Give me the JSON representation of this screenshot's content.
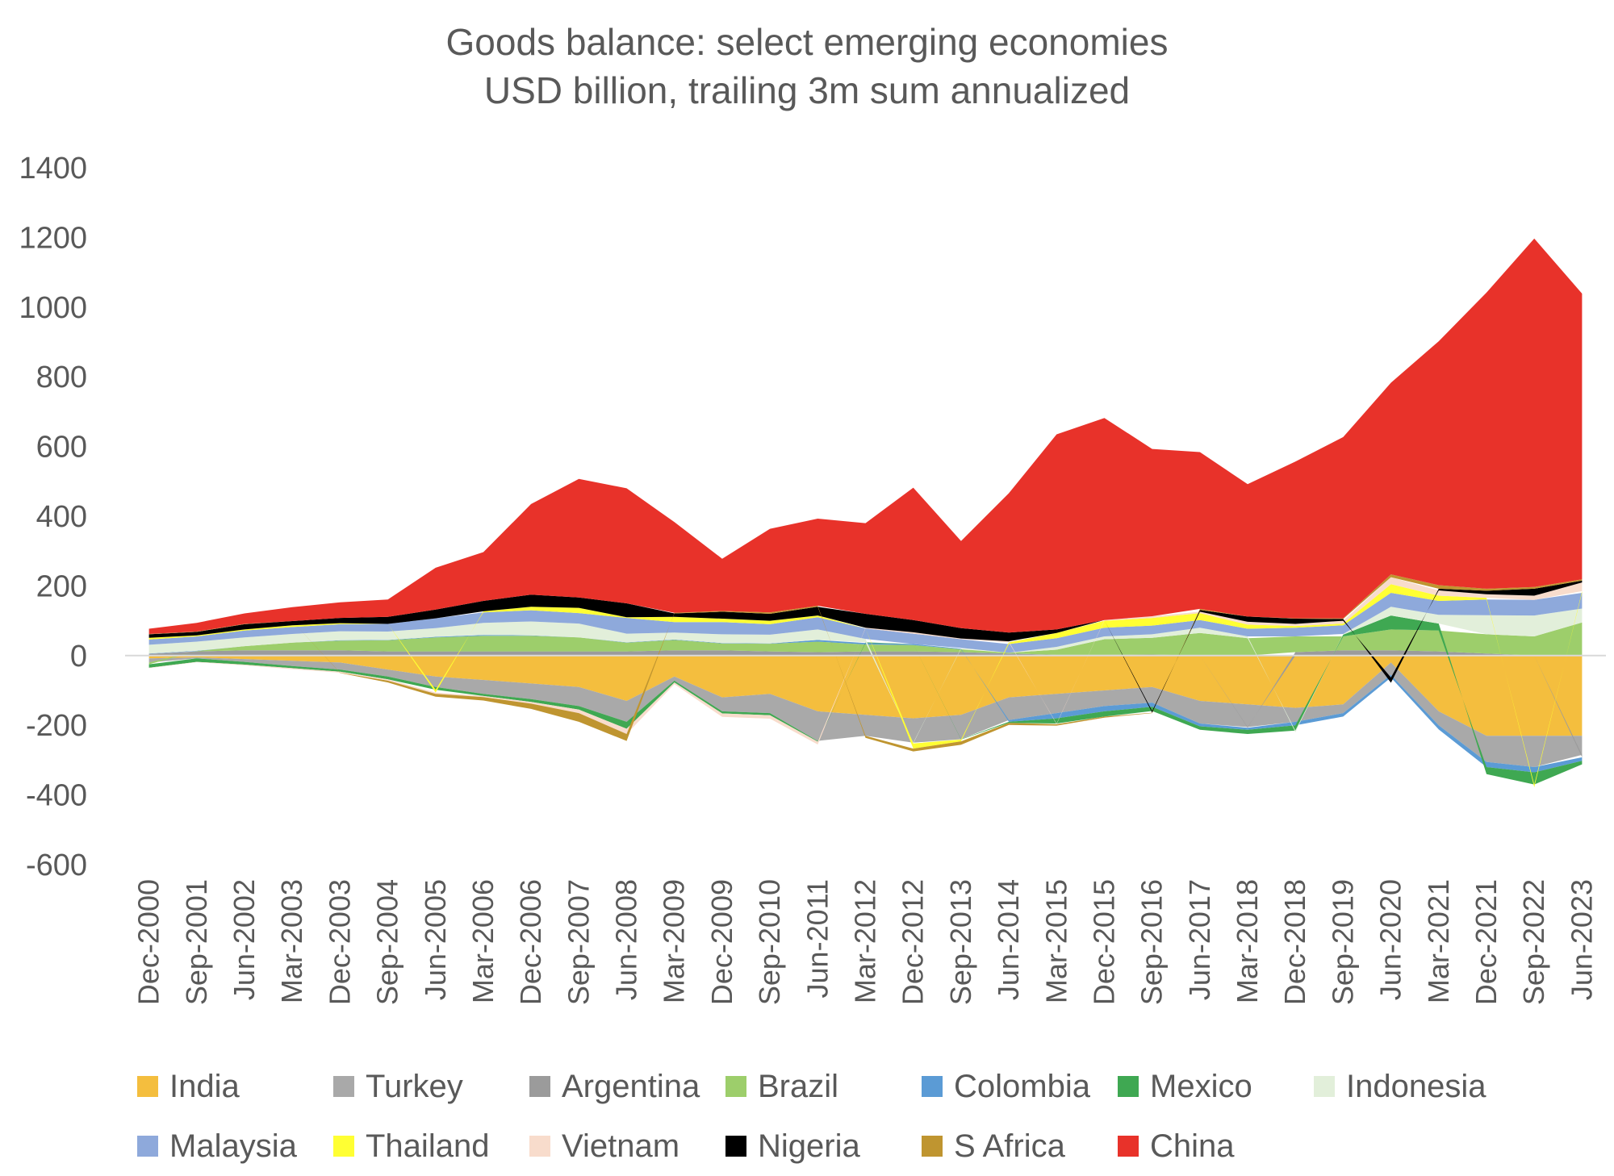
{
  "title": "Goods balance: select emerging economies",
  "subtitle": "USD billion, trailing 3m sum annualized",
  "chart_data": {
    "type": "area",
    "stacked": true,
    "title": "Goods balance: select emerging economies",
    "subtitle": "USD billion, trailing 3m sum annualized",
    "xlabel": "",
    "ylabel": "",
    "ylim": [
      -600,
      1400
    ],
    "yticks": [
      "1400",
      "1200",
      "1000",
      "800",
      "600",
      "400",
      "200",
      "0",
      "-200",
      "-400",
      "-600"
    ],
    "ytick_values": [
      1400,
      1200,
      1000,
      800,
      600,
      400,
      200,
      0,
      -200,
      -400,
      -600
    ],
    "xtick_labels": [
      "Dec-2000",
      "Sep-2001",
      "Jun-2002",
      "Mar-2003",
      "Dec-2003",
      "Sep-2004",
      "Jun-2005",
      "Mar-2006",
      "Dec-2006",
      "Sep-2007",
      "Jun-2008",
      "Mar-2009",
      "Dec-2009",
      "Sep-2010",
      "Jun-2011",
      "Mar-2012",
      "Dec-2012",
      "Sep-2013",
      "Jun-2014",
      "Mar-2015",
      "Dec-2015",
      "Sep-2016",
      "Jun-2017",
      "Mar-2018",
      "Dec-2018",
      "Sep-2019",
      "Jun-2020",
      "Mar-2021",
      "Dec-2021",
      "Sep-2022",
      "Jun-2023"
    ],
    "x": [
      "Dec-2000",
      "Sep-2001",
      "Jun-2002",
      "Mar-2003",
      "Dec-2003",
      "Sep-2004",
      "Jun-2005",
      "Mar-2006",
      "Dec-2006",
      "Sep-2007",
      "Jun-2008",
      "Mar-2009",
      "Dec-2009",
      "Sep-2010",
      "Jun-2011",
      "Mar-2012",
      "Dec-2012",
      "Sep-2013",
      "Jun-2014",
      "Mar-2015",
      "Dec-2015",
      "Sep-2016",
      "Jun-2017",
      "Mar-2018",
      "Dec-2018",
      "Sep-2019",
      "Jun-2020",
      "Mar-2021",
      "Dec-2021",
      "Sep-2022",
      "Jun-2023"
    ],
    "legend_placement": "bottom",
    "grid": false,
    "series": [
      {
        "name": "India",
        "color": "#F4BE3E",
        "values": [
          -8,
          -5,
          -10,
          -15,
          -20,
          -40,
          -60,
          -70,
          -80,
          -90,
          -130,
          -60,
          -120,
          -110,
          -160,
          -170,
          -180,
          -170,
          -120,
          -110,
          -100,
          -90,
          -130,
          -140,
          -150,
          -140,
          -20,
          -160,
          -230,
          -230,
          -230
        ]
      },
      {
        "name": "Turkey",
        "color": "#A9A9A9",
        "values": [
          -12,
          -3,
          -8,
          -15,
          -20,
          -20,
          -30,
          -40,
          -45,
          -55,
          -60,
          -12,
          -40,
          -55,
          -85,
          -60,
          -70,
          -70,
          -65,
          -55,
          -45,
          -45,
          -65,
          -65,
          -40,
          -25,
          -35,
          -40,
          -75,
          -90,
          -55
        ]
      },
      {
        "name": "Argentina",
        "color": "#9B9B9B",
        "values": [
          5,
          12,
          15,
          15,
          15,
          12,
          12,
          12,
          12,
          12,
          12,
          15,
          15,
          12,
          10,
          12,
          12,
          10,
          6,
          2,
          2,
          3,
          0,
          -2,
          10,
          15,
          15,
          12,
          6,
          0,
          -7
        ]
      },
      {
        "name": "Brazil",
        "color": "#9DCE6B",
        "values": [
          -5,
          1,
          12,
          22,
          28,
          32,
          40,
          45,
          45,
          40,
          25,
          30,
          20,
          22,
          30,
          20,
          18,
          8,
          2,
          15,
          45,
          48,
          65,
          50,
          45,
          40,
          60,
          60,
          55,
          55,
          95
        ]
      },
      {
        "name": "Colombia",
        "color": "#5B9BD5",
        "values": [
          1,
          1,
          0,
          0,
          1,
          1,
          2,
          2,
          1,
          0,
          1,
          1,
          1,
          1,
          5,
          4,
          3,
          2,
          -5,
          -15,
          -15,
          -12,
          -8,
          -6,
          -10,
          -10,
          -8,
          -12,
          -15,
          -15,
          -10
        ]
      },
      {
        "name": "Mexico",
        "color": "#3FA852",
        "values": [
          -10,
          -10,
          -8,
          -6,
          -6,
          -8,
          -8,
          -6,
          -8,
          -10,
          -20,
          -5,
          -6,
          -6,
          -2,
          2,
          0,
          -1,
          -3,
          -15,
          -15,
          -12,
          -10,
          -12,
          -15,
          5,
          40,
          20,
          -20,
          -35,
          -10
        ]
      },
      {
        "name": "Indonesia",
        "color": "#E2EFDA",
        "values": [
          25,
          26,
          25,
          25,
          26,
          24,
          25,
          35,
          40,
          40,
          25,
          20,
          25,
          25,
          30,
          10,
          -2,
          2,
          0,
          8,
          8,
          10,
          15,
          5,
          -5,
          2,
          25,
          25,
          55,
          60,
          40
        ]
      },
      {
        "name": "Malaysia",
        "color": "#8EA9DB",
        "values": [
          15,
          15,
          20,
          20,
          20,
          22,
          28,
          30,
          32,
          30,
          45,
          30,
          35,
          30,
          35,
          30,
          30,
          25,
          25,
          25,
          25,
          25,
          22,
          22,
          25,
          25,
          40,
          40,
          45,
          45,
          45
        ]
      },
      {
        "name": "Thailand",
        "color": "#FFFF33",
        "values": [
          5,
          3,
          3,
          5,
          3,
          0,
          -8,
          3,
          10,
          15,
          2,
          15,
          10,
          10,
          5,
          0,
          -15,
          -5,
          5,
          15,
          20,
          22,
          20,
          12,
          5,
          5,
          25,
          15,
          5,
          -8,
          5
        ]
      },
      {
        "name": "Vietnam",
        "color": "#F8DCCC",
        "values": [
          -1,
          -1,
          -2,
          -3,
          -3,
          -4,
          -4,
          -3,
          -5,
          -10,
          -15,
          -5,
          -10,
          -10,
          -8,
          2,
          4,
          2,
          3,
          -2,
          2,
          5,
          4,
          8,
          6,
          8,
          20,
          15,
          10,
          12,
          25
        ]
      },
      {
        "name": "Nigeria",
        "color": "#000000",
        "values": [
          10,
          10,
          15,
          12,
          15,
          20,
          25,
          30,
          35,
          30,
          40,
          10,
          20,
          20,
          25,
          40,
          35,
          30,
          25,
          10,
          0,
          -5,
          5,
          15,
          15,
          5,
          -15,
          5,
          10,
          20,
          5
        ]
      },
      {
        "name": "S Africa",
        "color": "#BF9530",
        "values": [
          1,
          1,
          1,
          0,
          -1,
          -5,
          -8,
          -10,
          -15,
          -25,
          -20,
          2,
          2,
          4,
          3,
          -6,
          -8,
          -10,
          -6,
          -4,
          -3,
          -1,
          3,
          0,
          1,
          2,
          8,
          10,
          6,
          5,
          4
        ]
      },
      {
        "name": "China",
        "color": "#E8322A",
        "values": [
          15,
          25,
          30,
          40,
          45,
          50,
          120,
          140,
          260,
          340,
          330,
          260,
          150,
          240,
          250,
          260,
          380,
          250,
          400,
          560,
          580,
          480,
          450,
          380,
          450,
          520,
          550,
          700,
          850,
          1000,
          820
        ]
      }
    ]
  }
}
